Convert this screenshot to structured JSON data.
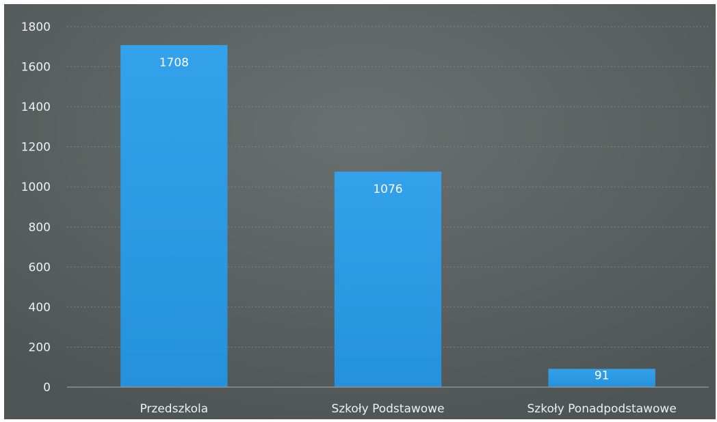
{
  "chart_data": {
    "type": "bar",
    "categories": [
      "Przedszkola",
      "Szkoły Podstawowe",
      "Szkoły Ponadpodstawowe"
    ],
    "values": [
      1708,
      1076,
      91
    ],
    "ylim": [
      0,
      1800
    ],
    "yticks": [
      0,
      200,
      400,
      600,
      800,
      1000,
      1200,
      1400,
      1600,
      1800
    ],
    "grid": true,
    "data_labels": true,
    "colors": {
      "bar": "#2e9be4",
      "background": "#5b6362",
      "gridline": "#7e8685",
      "text": "#eef0f1"
    }
  }
}
